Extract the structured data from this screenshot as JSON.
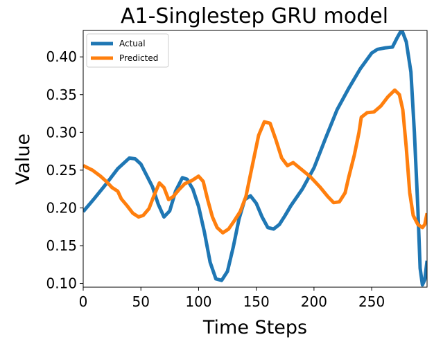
{
  "chart_data": {
    "type": "line",
    "title": "A1-Singlestep GRU model",
    "xlabel": "Time Steps",
    "ylabel": "Value",
    "xlim": [
      0,
      298
    ],
    "ylim": [
      0.095,
      0.435
    ],
    "xticks": [
      0,
      50,
      100,
      150,
      200,
      250
    ],
    "yticks": [
      0.1,
      0.15,
      0.2,
      0.25,
      0.3,
      0.35,
      0.4
    ],
    "ytick_labels": [
      "0.10",
      "0.15",
      "0.20",
      "0.25",
      "0.30",
      "0.35",
      "0.40"
    ],
    "legend_position": "top-left",
    "grid": false,
    "series": [
      {
        "name": "Actual",
        "color": "#1f77b4",
        "points": [
          [
            0,
            0.195
          ],
          [
            10,
            0.213
          ],
          [
            20,
            0.232
          ],
          [
            30,
            0.252
          ],
          [
            40,
            0.266
          ],
          [
            45,
            0.265
          ],
          [
            50,
            0.258
          ],
          [
            60,
            0.228
          ],
          [
            65,
            0.205
          ],
          [
            70,
            0.188
          ],
          [
            75,
            0.196
          ],
          [
            80,
            0.222
          ],
          [
            86,
            0.24
          ],
          [
            90,
            0.238
          ],
          [
            95,
            0.225
          ],
          [
            100,
            0.202
          ],
          [
            105,
            0.168
          ],
          [
            110,
            0.128
          ],
          [
            115,
            0.106
          ],
          [
            120,
            0.104
          ],
          [
            125,
            0.116
          ],
          [
            130,
            0.148
          ],
          [
            135,
            0.185
          ],
          [
            140,
            0.211
          ],
          [
            145,
            0.216
          ],
          [
            150,
            0.206
          ],
          [
            155,
            0.188
          ],
          [
            160,
            0.174
          ],
          [
            165,
            0.172
          ],
          [
            170,
            0.178
          ],
          [
            175,
            0.19
          ],
          [
            180,
            0.203
          ],
          [
            190,
            0.225
          ],
          [
            200,
            0.253
          ],
          [
            210,
            0.292
          ],
          [
            220,
            0.33
          ],
          [
            230,
            0.358
          ],
          [
            240,
            0.384
          ],
          [
            250,
            0.405
          ],
          [
            255,
            0.41
          ],
          [
            262,
            0.412
          ],
          [
            268,
            0.413
          ],
          [
            272,
            0.425
          ],
          [
            276,
            0.436
          ],
          [
            280,
            0.42
          ],
          [
            284,
            0.38
          ],
          [
            287,
            0.3
          ],
          [
            290,
            0.2
          ],
          [
            292,
            0.12
          ],
          [
            294,
            0.098
          ],
          [
            296,
            0.105
          ],
          [
            298,
            0.13
          ]
        ]
      },
      {
        "name": "Predicted",
        "color": "#ff7f0e",
        "points": [
          [
            0,
            0.256
          ],
          [
            8,
            0.25
          ],
          [
            15,
            0.242
          ],
          [
            20,
            0.235
          ],
          [
            25,
            0.227
          ],
          [
            30,
            0.222
          ],
          [
            33,
            0.212
          ],
          [
            38,
            0.203
          ],
          [
            43,
            0.193
          ],
          [
            48,
            0.188
          ],
          [
            52,
            0.19
          ],
          [
            57,
            0.199
          ],
          [
            61,
            0.215
          ],
          [
            66,
            0.233
          ],
          [
            70,
            0.227
          ],
          [
            74,
            0.211
          ],
          [
            78,
            0.215
          ],
          [
            83,
            0.224
          ],
          [
            88,
            0.232
          ],
          [
            94,
            0.236
          ],
          [
            100,
            0.242
          ],
          [
            104,
            0.235
          ],
          [
            108,
            0.21
          ],
          [
            112,
            0.188
          ],
          [
            116,
            0.174
          ],
          [
            121,
            0.167
          ],
          [
            126,
            0.172
          ],
          [
            131,
            0.183
          ],
          [
            136,
            0.195
          ],
          [
            141,
            0.215
          ],
          [
            146,
            0.252
          ],
          [
            152,
            0.296
          ],
          [
            157,
            0.314
          ],
          [
            162,
            0.312
          ],
          [
            167,
            0.29
          ],
          [
            172,
            0.266
          ],
          [
            177,
            0.256
          ],
          [
            182,
            0.26
          ],
          [
            190,
            0.25
          ],
          [
            197,
            0.241
          ],
          [
            205,
            0.228
          ],
          [
            212,
            0.215
          ],
          [
            217,
            0.207
          ],
          [
            222,
            0.208
          ],
          [
            227,
            0.22
          ],
          [
            230,
            0.24
          ],
          [
            235,
            0.27
          ],
          [
            239,
            0.3
          ],
          [
            241,
            0.32
          ],
          [
            246,
            0.326
          ],
          [
            252,
            0.327
          ],
          [
            258,
            0.335
          ],
          [
            264,
            0.347
          ],
          [
            270,
            0.356
          ],
          [
            274,
            0.35
          ],
          [
            277,
            0.33
          ],
          [
            280,
            0.28
          ],
          [
            283,
            0.22
          ],
          [
            286,
            0.19
          ],
          [
            290,
            0.178
          ],
          [
            294,
            0.174
          ],
          [
            296,
            0.178
          ],
          [
            298,
            0.193
          ]
        ]
      }
    ]
  }
}
